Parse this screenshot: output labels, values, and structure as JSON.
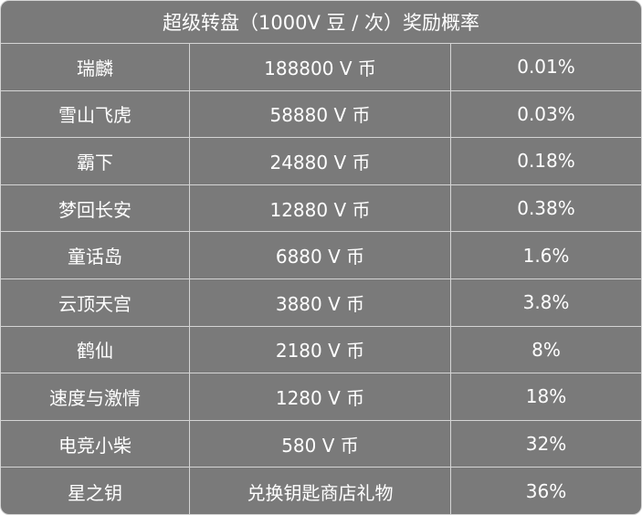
{
  "table": {
    "title": "超级转盘（1000V 豆 / 次）奖励概率",
    "rows": [
      {
        "name": "瑞麟",
        "reward": "188800 V 币",
        "rate": "0.01%"
      },
      {
        "name": "雪山飞虎",
        "reward": "58880 V 币",
        "rate": "0.03%"
      },
      {
        "name": "霸下",
        "reward": "24880 V 币",
        "rate": "0.18%"
      },
      {
        "name": "梦回长安",
        "reward": "12880 V 币",
        "rate": "0.38%"
      },
      {
        "name": "童话岛",
        "reward": "6880 V 币",
        "rate": "1.6%"
      },
      {
        "name": "云顶天宫",
        "reward": "3880 V 币",
        "rate": "3.8%"
      },
      {
        "name": "鹤仙",
        "reward": "2180 V 币",
        "rate": "8%"
      },
      {
        "name": "速度与激情",
        "reward": "1280 V 币",
        "rate": "18%"
      },
      {
        "name": "电竞小柴",
        "reward": "580 V 币",
        "rate": "32%"
      },
      {
        "name": "星之钥",
        "reward": "兑换钥匙商店礼物",
        "rate": "36%"
      }
    ]
  },
  "colors": {
    "cell_background": "#7a7a7a",
    "grid_line": "#d4d4d4",
    "text": "#ffffff"
  }
}
